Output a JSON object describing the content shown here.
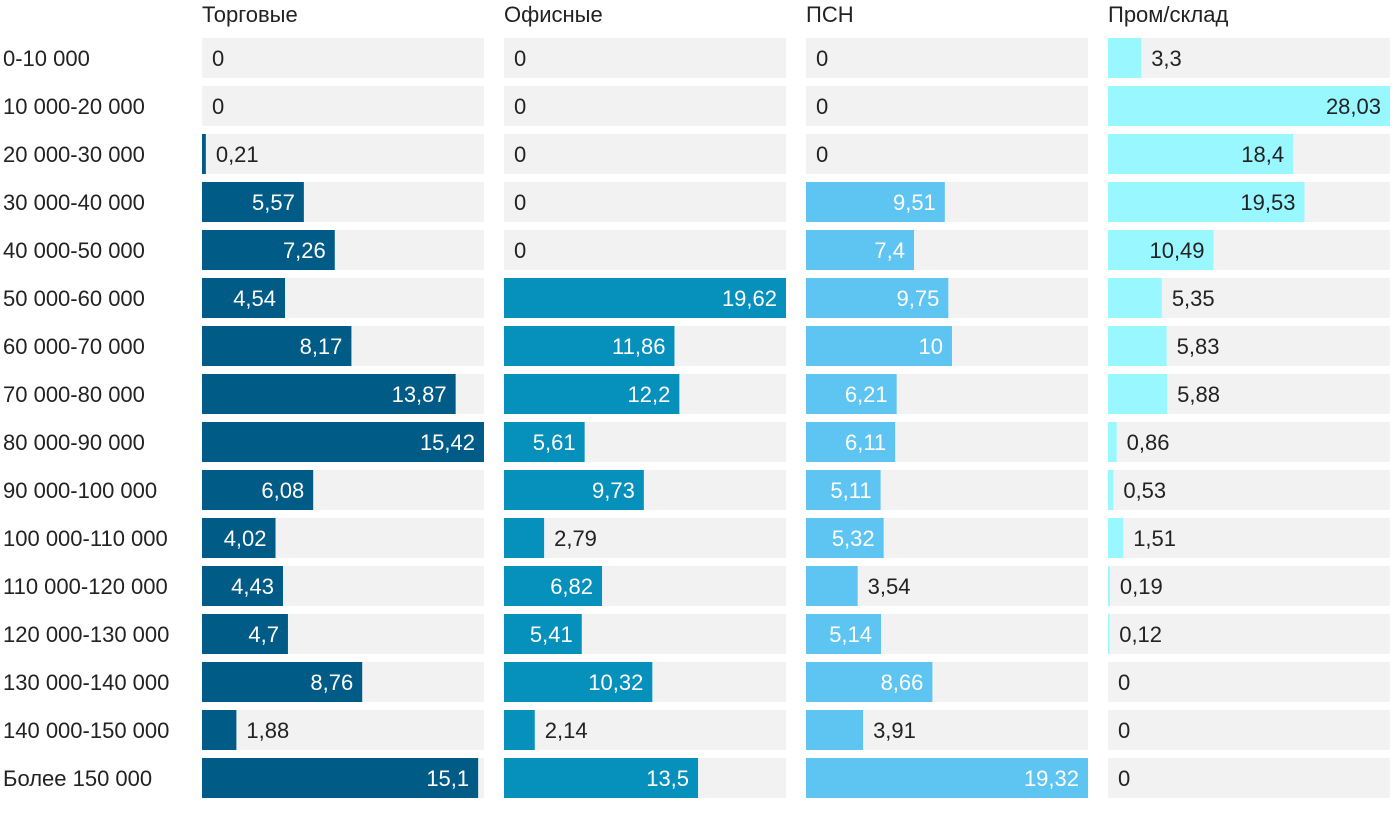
{
  "chart_data": {
    "type": "bar",
    "orientation": "horizontal",
    "layout": "small-multiples",
    "grid": false,
    "legend": "none",
    "categories": [
      "0-10 000",
      "10 000-20 000",
      "20 000-30 000",
      "30 000-40 000",
      "40 000-50 000",
      "50 000-60 000",
      "60 000-70 000",
      "70 000-80 000",
      "80 000-90 000",
      "90 000-100 000",
      "100 000-110 000",
      "110 000-120 000",
      "120 000-130 000",
      "130 000-140 000",
      "140 000-150 000",
      "Более 150 000"
    ],
    "series": [
      {
        "name": "Торговые",
        "color": "#005b86",
        "max": 15.42,
        "values": [
          0,
          0,
          0.21,
          5.57,
          7.26,
          4.54,
          8.17,
          13.87,
          15.42,
          6.08,
          4.02,
          4.43,
          4.7,
          8.76,
          1.88,
          15.1
        ],
        "labels": [
          "0",
          "0",
          "0,21",
          "5,57",
          "7,26",
          "4,54",
          "8,17",
          "13,87",
          "15,42",
          "6,08",
          "4,02",
          "4,43",
          "4,7",
          "8,76",
          "1,88",
          "15,1"
        ]
      },
      {
        "name": "Офисные",
        "color": "#0690bc",
        "max": 19.62,
        "values": [
          0,
          0,
          0,
          0,
          0,
          19.62,
          11.86,
          12.2,
          5.61,
          9.73,
          2.79,
          6.82,
          5.41,
          10.32,
          2.14,
          13.5
        ],
        "labels": [
          "0",
          "0",
          "0",
          "0",
          "0",
          "19,62",
          "11,86",
          "12,2",
          "5,61",
          "9,73",
          "2,79",
          "6,82",
          "5,41",
          "10,32",
          "2,14",
          "13,5"
        ]
      },
      {
        "name": "ПСН",
        "color": "#5ec5f3",
        "max": 19.32,
        "values": [
          0,
          0,
          0,
          9.51,
          7.4,
          9.75,
          10,
          6.21,
          6.11,
          5.11,
          5.32,
          3.54,
          5.14,
          8.66,
          3.91,
          19.32
        ],
        "labels": [
          "0",
          "0",
          "0",
          "9,51",
          "7,4",
          "9,75",
          "10",
          "6,21",
          "6,11",
          "5,11",
          "5,32",
          "3,54",
          "5,14",
          "8,66",
          "3,91",
          "19,32"
        ]
      },
      {
        "name": "Пром/склад",
        "color": "#99f8ff",
        "max": 28.03,
        "values": [
          3.3,
          28.03,
          18.4,
          19.53,
          10.49,
          5.35,
          5.83,
          5.88,
          0.86,
          0.53,
          1.51,
          0.19,
          0.12,
          0,
          0,
          0
        ],
        "labels": [
          "3,3",
          "28,03",
          "18,4",
          "19,53",
          "10,49",
          "5,35",
          "5,83",
          "5,88",
          "0,86",
          "0,53",
          "1,51",
          "0,19",
          "0,12",
          "0",
          "0",
          "0"
        ]
      }
    ]
  }
}
